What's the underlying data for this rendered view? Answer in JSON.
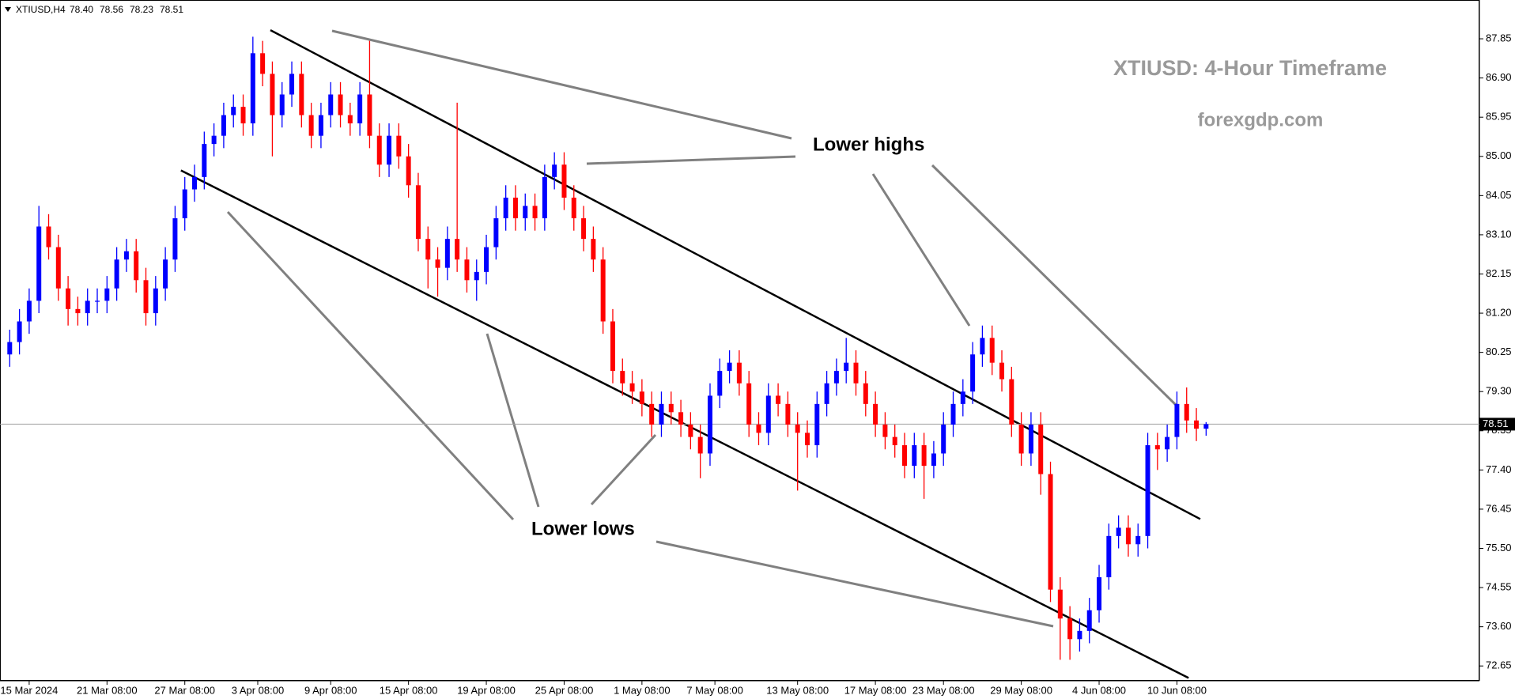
{
  "chart_data": {
    "type": "candlestick",
    "header": "XTIUSD,H4",
    "header_values": [
      "78.40",
      "78.56",
      "78.23",
      "78.51"
    ],
    "title": "XTIUSD: 4-Hour Timeframe",
    "subtitle": "forexgdp.com",
    "annotations": [
      "Lower highs",
      "Lower lows"
    ],
    "up_color": "#0000ff",
    "down_color": "#ff0000",
    "open": [
      80.2,
      80.5,
      81.0,
      81.5,
      83.3,
      82.8,
      81.8,
      81.3,
      81.2,
      81.5,
      81.5,
      81.8,
      82.5,
      82.7,
      82.0,
      81.2,
      81.8,
      82.5,
      83.5,
      84.2,
      84.5,
      85.3,
      85.5,
      86.0,
      86.2,
      85.8,
      87.5,
      87.0,
      86.0,
      86.5,
      87.0,
      86.0,
      85.5,
      86.0,
      86.5,
      86.0,
      85.8,
      86.5,
      85.5,
      84.8,
      85.5,
      85.0,
      84.3,
      83.0,
      82.5,
      82.3,
      83.0,
      82.5,
      82.0,
      82.2,
      82.8,
      83.5,
      84.0,
      83.5,
      83.8,
      83.5,
      84.5,
      84.8,
      84.0,
      83.5,
      83.0,
      82.5,
      81.0,
      79.8,
      79.5,
      79.3,
      79.0,
      78.5,
      79.0,
      78.8,
      78.5,
      78.2,
      77.8,
      79.2,
      79.8,
      80.0,
      79.5,
      78.5,
      78.3,
      79.2,
      79.0,
      78.5,
      78.3,
      78.0,
      79.0,
      79.5,
      79.8,
      80.0,
      79.5,
      79.0,
      78.5,
      78.2,
      78.0,
      77.5,
      78.0,
      77.5,
      77.8,
      78.5,
      79.0,
      79.3,
      80.2,
      80.6,
      80.0,
      79.6,
      78.5,
      77.8,
      78.5,
      77.3,
      74.5,
      73.8,
      73.3,
      73.5,
      74.0,
      74.8,
      75.8,
      76.0,
      75.6,
      75.8,
      78.0,
      77.9,
      78.2,
      79.0,
      78.6,
      78.4
    ],
    "high": [
      80.8,
      81.3,
      81.8,
      83.8,
      83.6,
      83.1,
      82.1,
      81.6,
      81.8,
      81.8,
      82.1,
      82.8,
      83.0,
      83.0,
      82.3,
      82.1,
      82.8,
      83.8,
      84.5,
      84.8,
      85.6,
      85.8,
      86.3,
      86.5,
      86.5,
      87.9,
      87.8,
      87.3,
      86.8,
      87.3,
      87.3,
      86.3,
      86.3,
      86.8,
      86.8,
      86.3,
      86.8,
      87.8,
      85.8,
      85.8,
      85.8,
      85.3,
      84.6,
      83.3,
      82.8,
      83.3,
      86.3,
      82.8,
      82.5,
      83.1,
      83.8,
      84.3,
      84.3,
      84.1,
      84.1,
      84.8,
      85.1,
      85.1,
      84.3,
      83.8,
      83.3,
      82.8,
      81.3,
      80.1,
      79.8,
      79.6,
      79.3,
      79.3,
      79.3,
      79.1,
      78.8,
      78.5,
      79.5,
      80.1,
      80.3,
      80.3,
      79.8,
      78.8,
      79.5,
      79.5,
      79.3,
      78.8,
      78.6,
      79.3,
      79.8,
      80.1,
      80.6,
      80.3,
      79.8,
      79.3,
      78.8,
      78.5,
      78.3,
      78.3,
      78.3,
      78.1,
      78.8,
      79.3,
      79.6,
      80.5,
      80.9,
      80.9,
      80.3,
      79.9,
      78.8,
      78.8,
      78.8,
      77.6,
      74.8,
      74.1,
      73.8,
      74.3,
      75.1,
      76.1,
      76.3,
      76.3,
      76.1,
      78.3,
      78.3,
      78.5,
      79.3,
      79.4,
      78.9,
      78.56
    ],
    "low": [
      79.9,
      80.2,
      80.7,
      81.2,
      82.5,
      81.5,
      80.9,
      80.9,
      80.9,
      81.2,
      81.2,
      81.5,
      82.2,
      81.7,
      80.9,
      80.9,
      81.5,
      82.2,
      83.2,
      83.9,
      84.2,
      85.0,
      85.2,
      85.7,
      85.5,
      85.5,
      86.7,
      85.0,
      85.7,
      86.2,
      85.7,
      85.2,
      85.2,
      85.7,
      85.7,
      85.5,
      85.5,
      85.2,
      84.5,
      84.5,
      84.7,
      84.0,
      82.7,
      81.8,
      81.6,
      82.0,
      82.2,
      81.7,
      81.5,
      81.9,
      82.5,
      83.2,
      83.2,
      83.2,
      83.2,
      83.2,
      84.2,
      83.7,
      83.2,
      82.7,
      82.2,
      80.7,
      79.5,
      79.2,
      79.0,
      78.7,
      78.2,
      78.2,
      78.5,
      78.2,
      77.9,
      77.2,
      77.5,
      78.9,
      79.5,
      79.2,
      78.2,
      78.0,
      78.0,
      78.7,
      78.2,
      76.9,
      77.7,
      77.7,
      78.7,
      79.2,
      79.5,
      79.2,
      78.7,
      78.2,
      77.9,
      77.7,
      77.2,
      77.2,
      76.7,
      77.2,
      77.5,
      78.2,
      78.7,
      79.0,
      79.9,
      79.7,
      79.3,
      78.2,
      77.5,
      77.5,
      76.8,
      74.2,
      72.8,
      72.8,
      73.0,
      73.2,
      73.7,
      74.5,
      75.5,
      75.3,
      75.3,
      75.5,
      77.4,
      77.6,
      77.9,
      78.3,
      78.1,
      78.23
    ],
    "close": [
      80.5,
      81.0,
      81.5,
      83.3,
      82.8,
      81.8,
      81.3,
      81.2,
      81.5,
      81.5,
      81.8,
      82.5,
      82.7,
      82.0,
      81.2,
      81.8,
      82.5,
      83.5,
      84.2,
      84.5,
      85.3,
      85.5,
      86.0,
      86.2,
      85.8,
      87.5,
      87.0,
      86.0,
      86.5,
      87.0,
      86.0,
      85.5,
      86.0,
      86.5,
      86.0,
      85.8,
      86.5,
      85.5,
      84.8,
      85.5,
      85.0,
      84.3,
      83.0,
      82.5,
      82.3,
      83.0,
      82.5,
      82.0,
      82.2,
      82.8,
      83.5,
      84.0,
      83.5,
      83.8,
      83.5,
      84.5,
      84.8,
      84.0,
      83.5,
      83.0,
      82.5,
      81.0,
      79.8,
      79.5,
      79.3,
      79.0,
      78.5,
      79.0,
      78.8,
      78.5,
      78.2,
      77.8,
      79.2,
      79.8,
      80.0,
      79.5,
      78.5,
      78.3,
      79.2,
      79.0,
      78.5,
      78.3,
      78.0,
      79.0,
      79.5,
      79.8,
      80.0,
      79.5,
      79.0,
      78.5,
      78.2,
      78.0,
      77.5,
      78.0,
      77.5,
      77.8,
      78.5,
      79.0,
      79.3,
      80.2,
      80.6,
      80.0,
      79.6,
      78.5,
      77.8,
      78.5,
      77.3,
      74.5,
      73.8,
      73.3,
      73.5,
      74.0,
      74.8,
      75.8,
      76.0,
      75.6,
      75.8,
      78.0,
      77.9,
      78.2,
      79.0,
      78.6,
      78.4,
      78.51
    ],
    "price_line": 78.51,
    "trendlines": [
      {
        "x": [
          26.8,
          122.4
        ],
        "y": [
          88.06,
          76.21
        ]
      },
      {
        "x": [
          17.6,
          121.2
        ],
        "y": [
          84.66,
          72.36
        ]
      }
    ],
    "xlim": [
      -1,
      151.1
    ],
    "xticks": [
      {
        "value": 2,
        "label": "15 Mar 2024"
      },
      {
        "value": 10,
        "label": "21 Mar 08:00"
      },
      {
        "value": 18,
        "label": "27 Mar 08:00"
      },
      {
        "value": 25.5,
        "label": "3 Apr 08:00"
      },
      {
        "value": 33,
        "label": "9 Apr 08:00"
      },
      {
        "value": 41,
        "label": "15 Apr 08:00"
      },
      {
        "value": 49,
        "label": "19 Apr 08:00"
      },
      {
        "value": 57,
        "label": "25 Apr 08:00"
      },
      {
        "value": 65,
        "label": "1 May 08:00"
      },
      {
        "value": 72.5,
        "label": "7 May 08:00"
      },
      {
        "value": 81,
        "label": "13 May 08:00"
      },
      {
        "value": 89,
        "label": "17 May 08:00"
      },
      {
        "value": 96,
        "label": "23 May 08:00"
      },
      {
        "value": 104,
        "label": "29 May 08:00"
      },
      {
        "value": 112,
        "label": "4 Jun 08:00"
      },
      {
        "value": 120,
        "label": "10 Jun 08:00"
      }
    ],
    "ylim": [
      72.29,
      88.79
    ],
    "yticks": [
      72.65,
      {
        "value": 73.6,
        "label": "73.60"
      },
      74.55,
      {
        "value": 75.5,
        "label": "75.50"
      },
      76.45,
      {
        "value": 77.4,
        "label": "77.40"
      },
      78.35,
      {
        "value": 79.3,
        "label": "79.30"
      },
      80.25,
      {
        "value": 81.2,
        "label": "81.20"
      },
      82.15,
      {
        "value": 83.1,
        "label": "83.10"
      },
      84.05,
      {
        "value": 85,
        "label": "85.00"
      },
      85.95,
      {
        "value": 86.9,
        "label": "86.90"
      },
      87.85
    ]
  }
}
